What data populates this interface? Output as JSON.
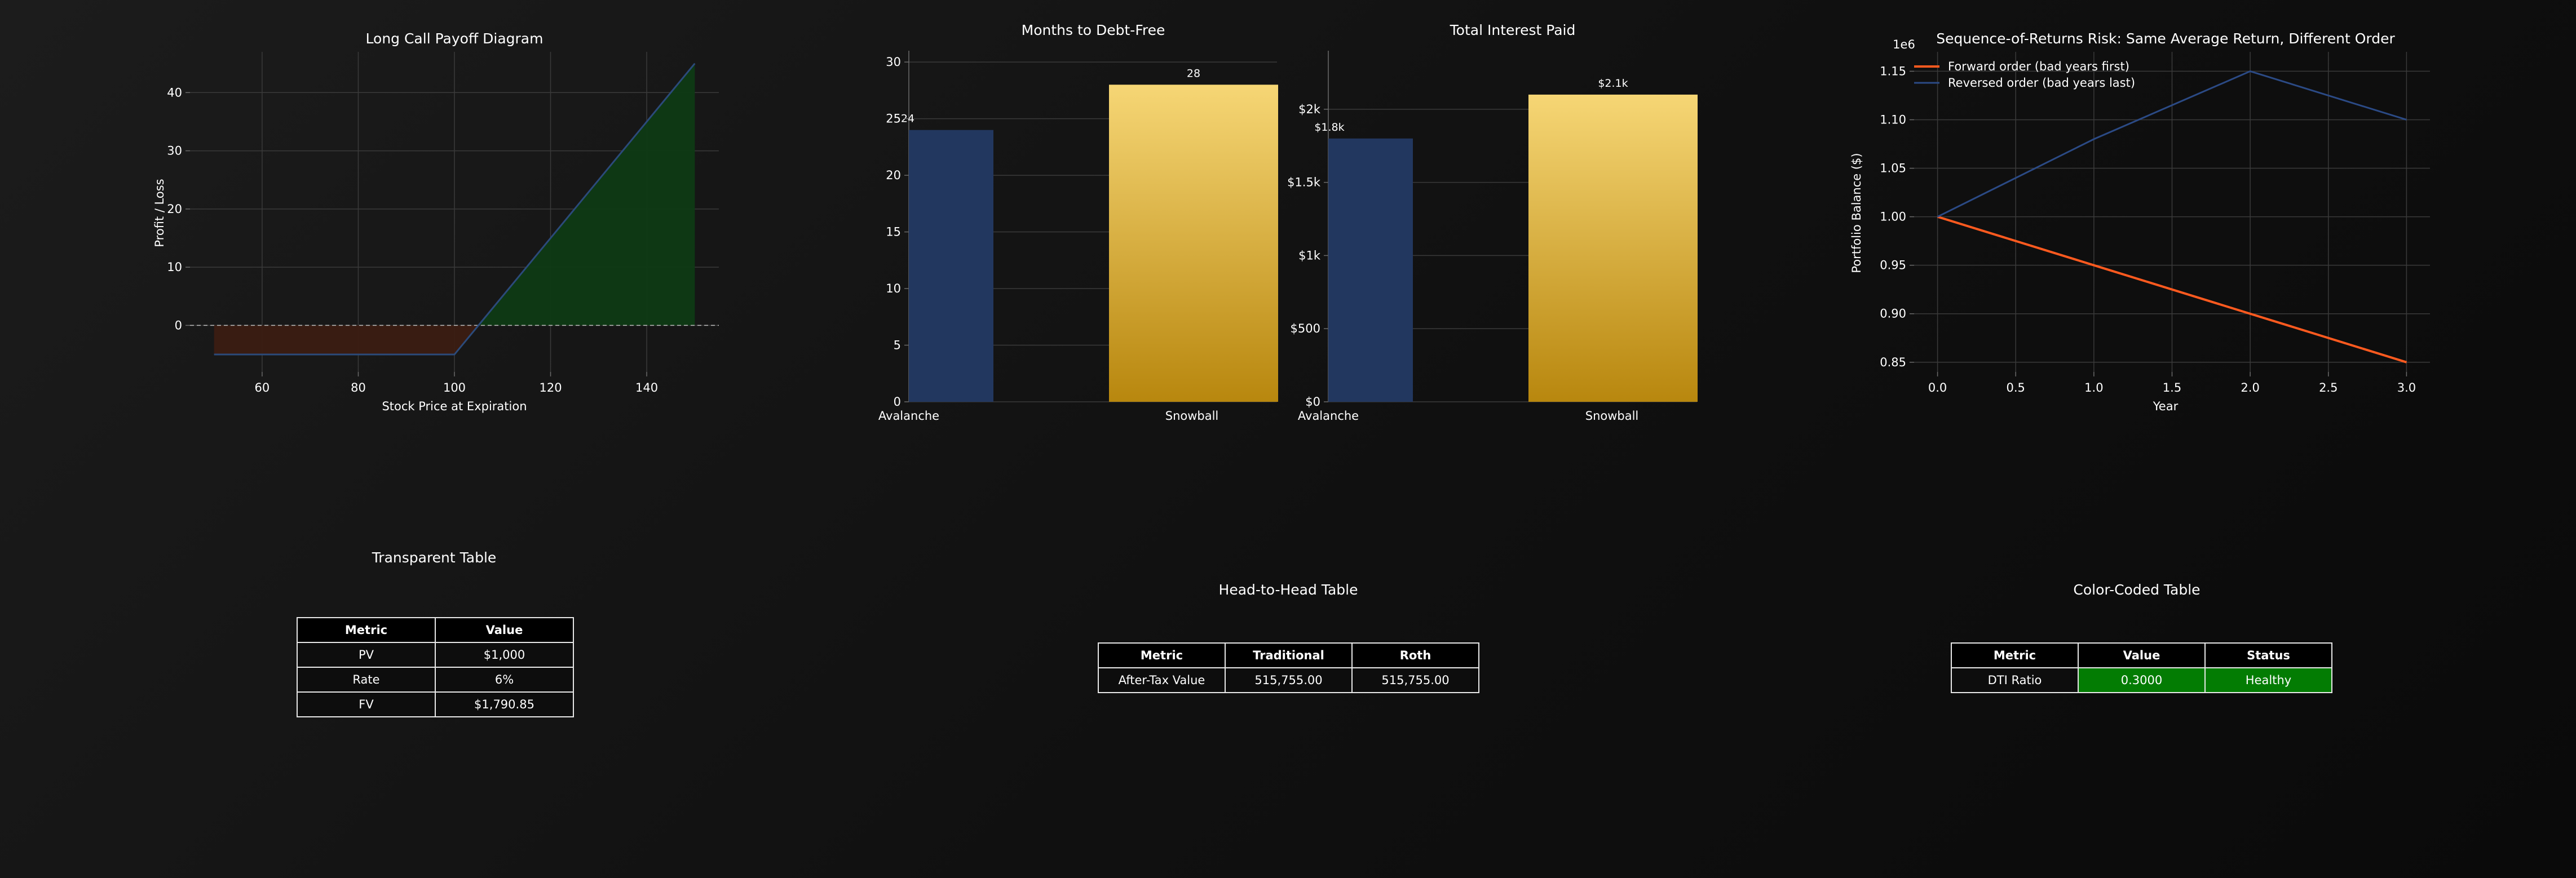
{
  "colors": {
    "avalanche": "#22375f",
    "snowball_top": "#f6d675",
    "snowball_bottom": "#b8870e",
    "loss_fill": "#3b1c12",
    "gain_fill": "#0e3a14",
    "payoff_line": "#2b4a7a",
    "forward": "#ff5a1f",
    "reversed": "#2b4a85",
    "healthy": "#037c03"
  },
  "chart_data": [
    {
      "type": "area",
      "title": "Long Call Payoff Diagram",
      "xlabel": "Stock Price at Expiration",
      "ylabel": "Profit / Loss",
      "x": [
        50,
        100,
        105,
        150
      ],
      "y": [
        -5,
        -5,
        0,
        45
      ],
      "xlim": [
        45,
        155
      ],
      "ylim": [
        -8,
        47
      ],
      "xticks": [
        60,
        80,
        100,
        120,
        140
      ],
      "yticks": [
        0,
        10,
        20,
        30,
        40
      ],
      "grid": true
    },
    {
      "type": "bar",
      "title": "Months to Debt-Free",
      "categories": [
        "Avalanche",
        "Snowball"
      ],
      "values": [
        24,
        28
      ],
      "value_labels": [
        "24",
        "28"
      ],
      "ylim": [
        0,
        31
      ],
      "yticks": [
        "0",
        "5",
        "10",
        "15",
        "20",
        "25",
        "30"
      ],
      "grid": true
    },
    {
      "type": "bar",
      "title": "Total Interest Paid",
      "categories": [
        "Avalanche",
        "Snowball"
      ],
      "values": [
        1800,
        2100
      ],
      "value_labels": [
        "$1.8k",
        "$2.1k"
      ],
      "ylim": [
        0,
        2400
      ],
      "yticks": [
        "$0",
        "$500",
        "$1k",
        "$1.5k",
        "$2k"
      ],
      "grid": true
    },
    {
      "type": "line",
      "title": "Sequence-of-Returns Risk: Same Average Return, Different Order",
      "xlabel": "Year",
      "ylabel": "Portfolio Balance ($)",
      "offset_label": "1e6",
      "x": [
        0,
        1,
        2,
        3
      ],
      "series": [
        {
          "name": "Forward order (bad years first)",
          "values": [
            1.0,
            0.95,
            0.9,
            0.85
          ]
        },
        {
          "name": "Reversed order (bad years last)",
          "values": [
            1.0,
            1.08,
            1.15,
            1.1
          ]
        }
      ],
      "xlim": [
        -0.15,
        3.15
      ],
      "ylim": [
        0.84,
        1.17
      ],
      "xticks": [
        "0.0",
        "0.5",
        "1.0",
        "1.5",
        "2.0",
        "2.5",
        "3.0"
      ],
      "yticks": [
        "0.85",
        "0.90",
        "0.95",
        "1.00",
        "1.05",
        "1.10",
        "1.15"
      ],
      "legend": "top-left",
      "grid": true
    },
    {
      "type": "table",
      "title": "Transparent Table",
      "columns": [
        "Metric",
        "Value"
      ],
      "rows": [
        [
          "PV",
          "$1,000"
        ],
        [
          "Rate",
          "6%"
        ],
        [
          "FV",
          "$1,790.85"
        ]
      ]
    },
    {
      "type": "table",
      "title": "Head-to-Head Table",
      "columns": [
        "Metric",
        "Traditional",
        "Roth"
      ],
      "rows": [
        [
          "After-Tax Value",
          "515,755.00",
          "515,755.00"
        ]
      ]
    },
    {
      "type": "table",
      "title": "Color-Coded Table",
      "columns": [
        "Metric",
        "Value",
        "Status"
      ],
      "rows": [
        [
          "DTI Ratio",
          "0.3000",
          "Healthy"
        ]
      ]
    }
  ]
}
